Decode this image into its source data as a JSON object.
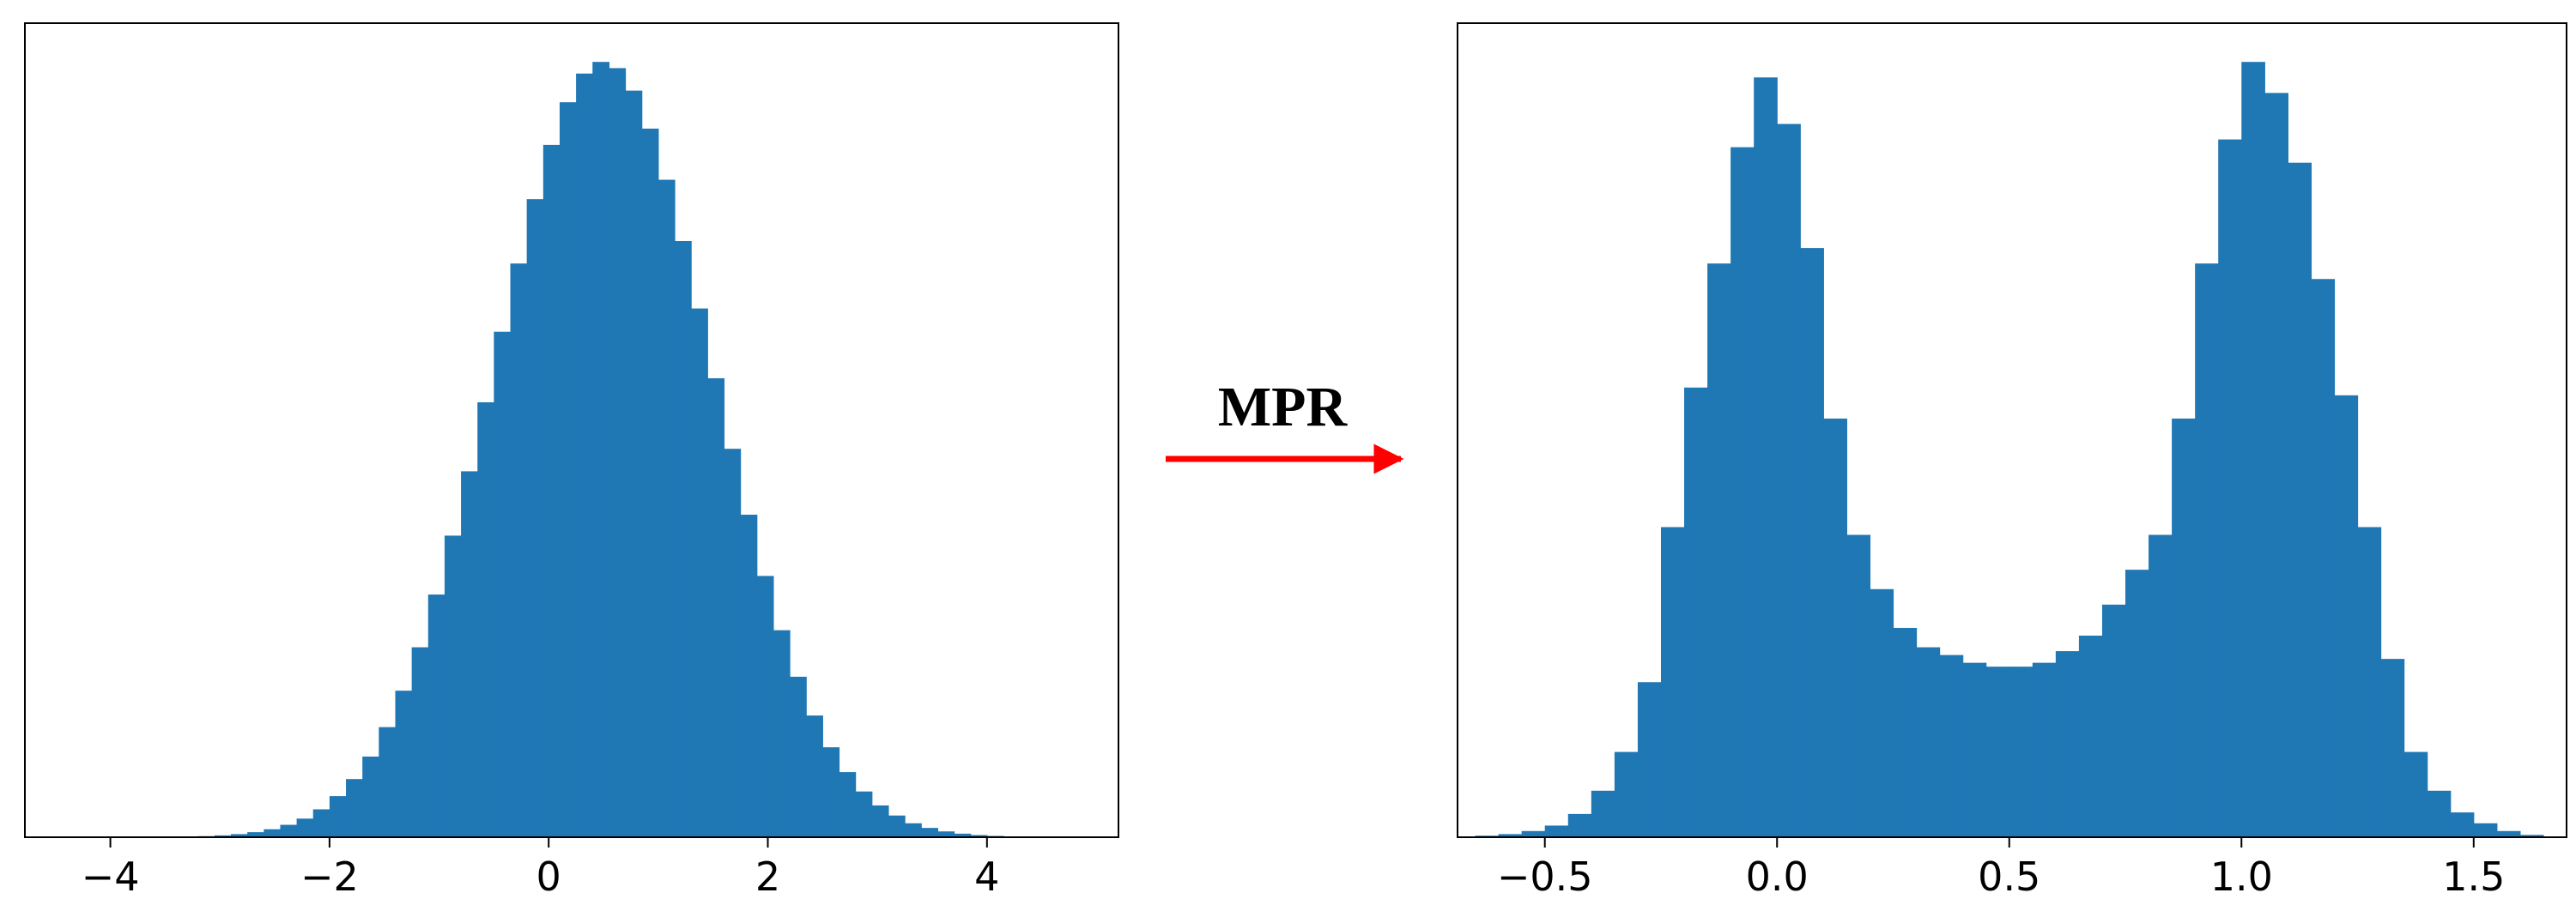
{
  "arrow_label": "MPR",
  "chart_data": [
    {
      "type": "histogram",
      "color": "#1f77b4",
      "bins": [
        -3.2,
        -3.05,
        -2.9,
        -2.75,
        -2.6,
        -2.45,
        -2.3,
        -2.15,
        -2.0,
        -1.85,
        -1.7,
        -1.55,
        -1.4,
        -1.25,
        -1.1,
        -0.95,
        -0.8,
        -0.65,
        -0.5,
        -0.35,
        -0.2,
        -0.05,
        0.1,
        0.25,
        0.4,
        0.55,
        0.7,
        0.85,
        1.0,
        1.15,
        1.3,
        1.45,
        1.6,
        1.75,
        1.9,
        2.05,
        2.2,
        2.35,
        2.5,
        2.65,
        2.8,
        2.95,
        3.1,
        3.25,
        3.4,
        3.55,
        3.7,
        3.85,
        4.0,
        4.15,
        4.3
      ],
      "values": [
        0.14,
        0.24,
        0.4,
        0.65,
        1.03,
        1.6,
        2.4,
        3.6,
        5.3,
        7.5,
        10.4,
        14.2,
        18.9,
        24.5,
        31.3,
        38.9,
        47.2,
        56.1,
        65.2,
        74.0,
        82.3,
        89.3,
        94.8,
        98.5,
        100,
        99.2,
        96.3,
        91.4,
        84.8,
        76.9,
        68.2,
        59.2,
        50.1,
        41.6,
        33.7,
        26.7,
        20.7,
        15.7,
        11.6,
        8.4,
        5.9,
        4.1,
        2.8,
        1.8,
        1.2,
        0.75,
        0.46,
        0.28,
        0.17,
        0.1
      ],
      "xlim": [
        -4.78,
        5.2
      ],
      "ylim": [
        0,
        105
      ],
      "xticks": [
        {
          "value": -4,
          "label": "−4"
        },
        {
          "value": -2,
          "label": "−2"
        },
        0,
        2,
        4
      ]
    },
    {
      "type": "histogram",
      "color": "#1f77b4",
      "bins": [
        -0.65,
        -0.6,
        -0.55,
        -0.5,
        -0.45,
        -0.4,
        -0.35,
        -0.3,
        -0.25,
        -0.2,
        -0.15,
        -0.1,
        -0.05,
        0.0,
        0.05,
        0.1,
        0.15,
        0.2,
        0.25,
        0.3,
        0.35,
        0.4,
        0.45,
        0.5,
        0.55,
        0.6,
        0.65,
        0.7,
        0.75,
        0.8,
        0.85,
        0.9,
        0.95,
        1.0,
        1.05,
        1.1,
        1.15,
        1.2,
        1.25,
        1.3,
        1.35,
        1.4,
        1.45,
        1.5,
        1.55,
        1.6,
        1.65
      ],
      "values": [
        0.2,
        0.4,
        0.8,
        1.5,
        3,
        6,
        11,
        20,
        40,
        58,
        74,
        89,
        98,
        92,
        76,
        54,
        39,
        32,
        27,
        24.5,
        23.5,
        22.5,
        22,
        22,
        22.5,
        24,
        26,
        30,
        34.5,
        39,
        54,
        74,
        90,
        100,
        96,
        87,
        72,
        57,
        40,
        23,
        11,
        6,
        3.2,
        1.8,
        0.8,
        0.3
      ],
      "xlim": [
        -0.688,
        1.7
      ],
      "ylim": [
        0,
        105
      ],
      "xticks": [
        {
          "value": -0.5,
          "label": "−0.5"
        },
        {
          "value": 0,
          "label": "0.0"
        },
        0.5,
        {
          "value": 1,
          "label": "1.0"
        },
        1.5
      ]
    }
  ]
}
